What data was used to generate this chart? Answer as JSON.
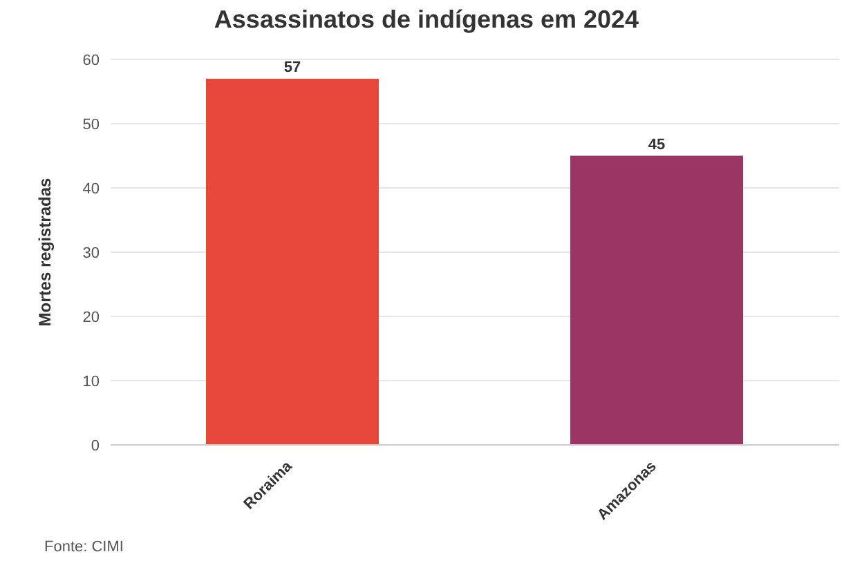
{
  "chart_data": {
    "type": "bar",
    "title": "Assassinatos de indígenas em 2024",
    "ylabel": "Mortes registradas",
    "categories": [
      "Roraima",
      "Amazonas"
    ],
    "values": [
      57,
      45
    ],
    "colors": [
      "#e8473b",
      "#9b3563"
    ],
    "ylim": [
      0,
      60
    ],
    "yticks": [
      0,
      10,
      20,
      30,
      40,
      50,
      60
    ],
    "grid": "y",
    "data_labels": true,
    "annotations": [
      "Fonte: CIMI"
    ]
  }
}
